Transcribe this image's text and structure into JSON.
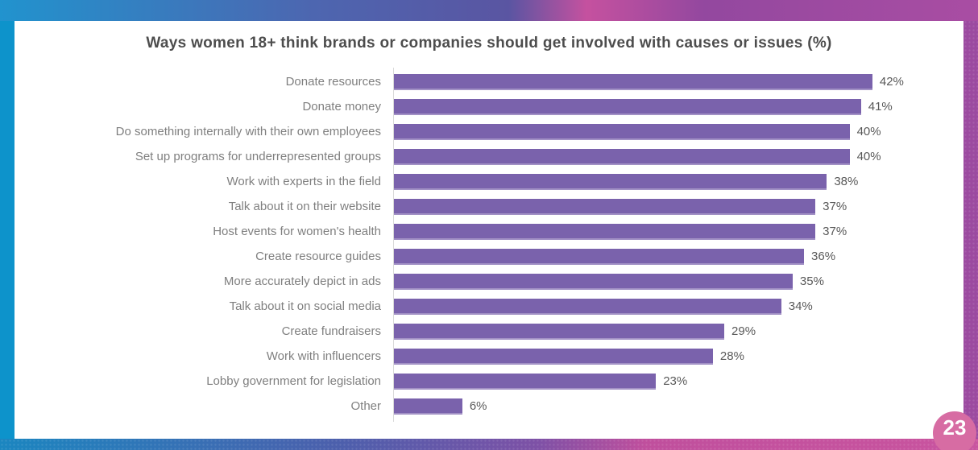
{
  "page": {
    "number": "23"
  },
  "chart_data": {
    "type": "bar",
    "orientation": "horizontal",
    "title": "Ways women 18+ think brands or companies should get involved with causes or issues (%)",
    "categories": [
      "Donate resources",
      "Donate money",
      "Do something internally with their own employees",
      "Set up programs for underrepresented groups",
      "Work with experts in the field",
      "Talk about it on their website",
      "Host events for women's health",
      "Create resource guides",
      "More accurately depict in ads",
      "Talk about it on social media",
      "Create fundraisers",
      "Work with influencers",
      "Lobby government for legislation",
      "Other"
    ],
    "values": [
      42,
      41,
      40,
      40,
      38,
      37,
      37,
      36,
      35,
      34,
      29,
      28,
      23,
      6
    ],
    "display_values": [
      "42%",
      "41%",
      "40%",
      "40%",
      "38%",
      "37%",
      "37%",
      "36%",
      "35%",
      "34%",
      "29%",
      "28%",
      "23%",
      "6%"
    ],
    "value_suffix": "%",
    "xlim": [
      0,
      50
    ],
    "grid": false,
    "legend": false,
    "value_labels_position": "end-of-bar"
  },
  "theme": {
    "bar_color": "#7A62AC",
    "axis_line_color": "#D9D9D9",
    "category_label_color": "#7F7F7F",
    "value_label_color": "#595959",
    "title_color": "#4D4D4D",
    "frame_left_color": "#0D93CB",
    "frame_right_color": "#9C4AA0",
    "page_badge_color": "#D76CA3",
    "page_badge_text_color": "#FFFFFF",
    "frame_top_gradient": [
      [
        "#2193CE",
        "0%"
      ],
      [
        "#4D66B0",
        "32%"
      ],
      [
        "#5A55A2",
        "52%"
      ],
      [
        "#C5519F",
        "60%"
      ],
      [
        "#93489F",
        "72%"
      ],
      [
        "#A94DA3",
        "100%"
      ]
    ],
    "frame_bottom_gradient": [
      [
        "#1B86C0",
        "0%"
      ],
      [
        "#4D5FAC",
        "35%"
      ],
      [
        "#7E51A6",
        "55%"
      ],
      [
        "#C04F9D",
        "66%"
      ],
      [
        "#C9549F",
        "100%"
      ]
    ]
  }
}
